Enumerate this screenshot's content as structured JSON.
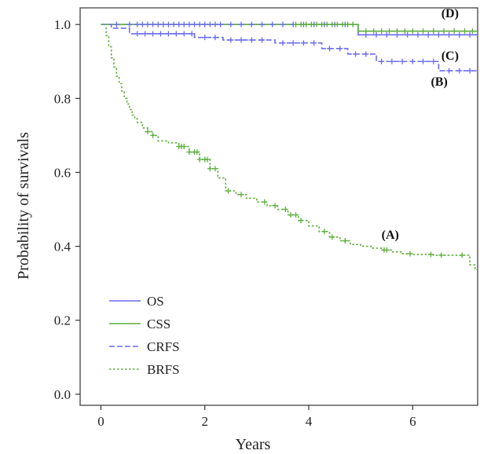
{
  "chart_data": {
    "type": "line",
    "title": "",
    "xlabel": "Years",
    "ylabel": "Probability of survivals",
    "xlim": [
      -0.4,
      7.25
    ],
    "ylim": [
      -0.03,
      1.045
    ],
    "xticks": [
      0,
      2,
      4,
      6
    ],
    "xtick_labels": [
      "0",
      "2",
      "4",
      "6"
    ],
    "yticks": [
      0.0,
      0.2,
      0.4,
      0.6,
      0.8,
      1.0
    ],
    "ytick_labels": [
      "0.0",
      "0.2",
      "0.4",
      "0.6",
      "0.8",
      "1.0"
    ],
    "grid": false,
    "legend_position": "bottom-left",
    "series": [
      {
        "name": "OS",
        "color": "#6b6bf0",
        "dash": "solid",
        "step_x": [
          0,
          4.95,
          7.25
        ],
        "step_y": [
          1.0,
          0.972,
          0.972
        ],
        "censor_x": [
          0.3,
          0.55,
          0.7,
          0.8,
          0.9,
          1.0,
          1.1,
          1.2,
          1.3,
          1.4,
          1.5,
          1.6,
          1.7,
          1.8,
          1.9,
          2.0,
          2.1,
          2.2,
          2.3,
          2.5,
          2.7,
          2.9,
          3.1,
          3.3,
          3.5,
          3.7,
          3.9,
          4.1,
          4.3,
          4.5,
          4.7,
          5.1,
          5.3,
          5.5,
          5.7,
          5.9,
          6.1,
          6.3,
          6.5,
          6.7,
          6.9,
          7.1
        ]
      },
      {
        "name": "CSS",
        "color": "#5cae3c",
        "dash": "solid",
        "step_x": [
          0,
          4.95,
          7.25
        ],
        "step_y": [
          1.0,
          0.982,
          0.982
        ],
        "censor_x": [
          3.75,
          3.85,
          3.95,
          4.05,
          4.15,
          4.25,
          4.35,
          4.45,
          4.55,
          4.65,
          4.75,
          4.85,
          5.1,
          5.25,
          5.4,
          5.55,
          5.7,
          5.85,
          6.0,
          6.2,
          6.4,
          6.6,
          6.8,
          7.0,
          7.15
        ]
      },
      {
        "name": "CRFS",
        "color": "#6b6bf0",
        "dash": "dashed",
        "step_x": [
          0,
          0.2,
          0.55,
          1.8,
          2.35,
          3.35,
          4.25,
          4.75,
          5.3,
          6.5,
          7.25
        ],
        "step_y": [
          1.0,
          0.99,
          0.975,
          0.965,
          0.958,
          0.95,
          0.935,
          0.92,
          0.9,
          0.875,
          0.875
        ],
        "censor_x": [
          0.7,
          0.85,
          1.0,
          1.15,
          1.3,
          1.45,
          1.6,
          1.75,
          2.0,
          2.2,
          2.5,
          2.7,
          2.9,
          3.1,
          3.5,
          3.7,
          3.9,
          4.1,
          4.4,
          4.6,
          4.9,
          5.1,
          5.4,
          5.6,
          5.8,
          6.0,
          6.2,
          6.4,
          6.7,
          6.9,
          7.1
        ]
      },
      {
        "name": "BRFS",
        "color": "#5cae3c",
        "dash": "dotted",
        "step_x": [
          0,
          0.1,
          0.15,
          0.2,
          0.25,
          0.3,
          0.35,
          0.4,
          0.45,
          0.5,
          0.55,
          0.6,
          0.65,
          0.7,
          0.8,
          0.9,
          1.0,
          1.1,
          1.3,
          1.5,
          1.7,
          1.9,
          2.1,
          2.25,
          2.4,
          2.6,
          2.8,
          3.0,
          3.2,
          3.4,
          3.6,
          3.8,
          4.0,
          4.2,
          4.4,
          4.6,
          4.8,
          5.0,
          5.2,
          5.4,
          5.6,
          5.8,
          6.0,
          6.2,
          6.4,
          6.6,
          6.8,
          7.0,
          7.1,
          7.2,
          7.25
        ],
        "step_y": [
          1.0,
          0.97,
          0.94,
          0.91,
          0.885,
          0.86,
          0.84,
          0.82,
          0.8,
          0.785,
          0.77,
          0.755,
          0.745,
          0.735,
          0.72,
          0.71,
          0.7,
          0.685,
          0.68,
          0.67,
          0.655,
          0.635,
          0.61,
          0.585,
          0.55,
          0.54,
          0.53,
          0.52,
          0.51,
          0.5,
          0.485,
          0.47,
          0.455,
          0.44,
          0.425,
          0.415,
          0.405,
          0.4,
          0.395,
          0.39,
          0.385,
          0.38,
          0.378,
          0.378,
          0.376,
          0.376,
          0.376,
          0.376,
          0.35,
          0.337,
          0.337
        ],
        "censor_x": [
          0.9,
          1.0,
          1.5,
          1.55,
          1.6,
          1.7,
          1.8,
          1.85,
          1.9,
          2.0,
          2.05,
          2.1,
          2.2,
          2.45,
          2.7,
          3.15,
          3.35,
          3.55,
          3.65,
          3.75,
          3.85,
          4.3,
          4.45,
          4.7,
          5.45,
          5.5,
          5.95,
          6.35,
          6.55,
          6.95
        ]
      }
    ],
    "annotations": [
      {
        "label": "(A)",
        "x": 5.4,
        "y": 0.42
      },
      {
        "label": "(B)",
        "x": 6.35,
        "y": 0.835
      },
      {
        "label": "(C)",
        "x": 6.55,
        "y": 0.905
      },
      {
        "label": "(D)",
        "x": 6.55,
        "y": 1.02
      }
    ]
  }
}
